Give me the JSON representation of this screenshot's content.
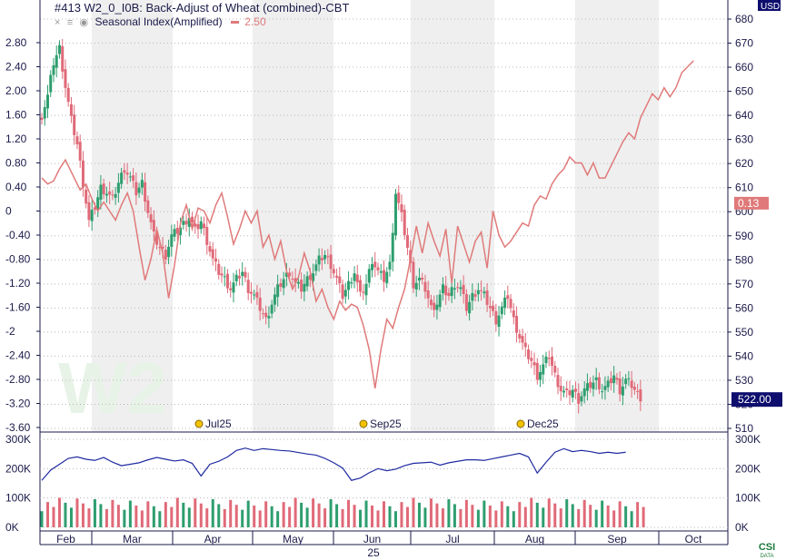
{
  "header": {
    "title": "#413 W2_0_I0B: Back-Adjust of Wheat (combined)-CBT",
    "icons": [
      "close-icon",
      "settings-icon",
      "eye-icon"
    ],
    "study_label": "Seasonal Index(Amplified)",
    "study_value": "2.50"
  },
  "watermark": "W2",
  "currency": "USD",
  "price_badge": "522.00",
  "index_badge": "0.13",
  "logo_text": "CSI DATA",
  "year_label": "25",
  "colors": {
    "up": "#2e9e6f",
    "down": "#e06a78",
    "seasonal": "#e07a7a",
    "volume_line": "#1f2aa0",
    "stripe": "#efefef",
    "axis": "#1a1a4a",
    "badge": "#0e0e6e"
  },
  "chart_data": [
    {
      "type": "line",
      "title": "#413 W2_0_I0B: Back-Adjust of Wheat (combined)-CBT",
      "subtitle": "Seasonal Index(Amplified) 2.50",
      "left_axis": {
        "ticks": [
          "2.80",
          "2.40",
          "2.00",
          "1.60",
          "1.20",
          "0.80",
          "0.40",
          "0",
          "-0.40",
          "-0.80",
          "-1.20",
          "-1.60",
          "-2",
          "-2.40",
          "-2.80",
          "-3.20",
          "-3.60"
        ],
        "range": [
          -3.6,
          3.2
        ]
      },
      "right_axis": {
        "unit": "USD",
        "ticks": [
          "680",
          "670",
          "660",
          "650",
          "640",
          "630",
          "620",
          "610",
          "600",
          "590",
          "580",
          "570",
          "560",
          "550",
          "540",
          "530",
          "520",
          "510"
        ],
        "range": [
          508,
          682
        ]
      },
      "x_axis": {
        "months": [
          "Feb",
          "Mar",
          "Apr",
          "May",
          "Jun",
          "Jul",
          "Aug",
          "Sep",
          "Oct"
        ],
        "year": "25"
      },
      "contract_markers": [
        "Jul25",
        "Sep25",
        "Dec25"
      ],
      "seasonal_index": {
        "name": "Seasonal Index(Amplified)",
        "last_value": 0.13,
        "points": [
          [
            0,
            0.55
          ],
          [
            2,
            0.45
          ],
          [
            4,
            0.5
          ],
          [
            6,
            0.7
          ],
          [
            8,
            0.85
          ],
          [
            9,
            0.75
          ],
          [
            11,
            0.55
          ],
          [
            13,
            0.35
          ],
          [
            15,
            0.45
          ],
          [
            17,
            0.2
          ],
          [
            19,
            0.0
          ],
          [
            21,
            0.15
          ],
          [
            23,
            0.0
          ],
          [
            25,
            -0.15
          ],
          [
            27,
            0.1
          ],
          [
            29,
            0.3
          ],
          [
            31,
            0.0
          ],
          [
            33,
            -0.6
          ],
          [
            35,
            -1.15
          ],
          [
            37,
            -0.8
          ],
          [
            39,
            -0.3
          ],
          [
            41,
            -0.7
          ],
          [
            43,
            -1.45
          ],
          [
            45,
            -0.9
          ],
          [
            47,
            -0.2
          ],
          [
            49,
            0.1
          ],
          [
            51,
            -0.3
          ],
          [
            53,
            0.05
          ],
          [
            55,
            0.0
          ],
          [
            57,
            -0.2
          ],
          [
            59,
            0.1
          ],
          [
            61,
            0.3
          ],
          [
            63,
            -0.1
          ],
          [
            65,
            -0.55
          ],
          [
            67,
            -0.3
          ],
          [
            69,
            0.0
          ],
          [
            71,
            -0.2
          ],
          [
            73,
            0.0
          ],
          [
            75,
            -0.6
          ],
          [
            77,
            -0.4
          ],
          [
            79,
            -0.8
          ],
          [
            81,
            -0.5
          ],
          [
            83,
            -1.0
          ],
          [
            85,
            -1.3
          ],
          [
            87,
            -1.1
          ],
          [
            89,
            -0.7
          ],
          [
            91,
            -1.0
          ],
          [
            93,
            -1.5
          ],
          [
            95,
            -1.3
          ],
          [
            97,
            -1.6
          ],
          [
            99,
            -1.8
          ],
          [
            101,
            -1.5
          ],
          [
            103,
            -1.65
          ],
          [
            105,
            -1.55
          ],
          [
            107,
            -1.6
          ],
          [
            109,
            -1.9
          ],
          [
            111,
            -2.3
          ],
          [
            113,
            -2.95
          ],
          [
            115,
            -2.3
          ],
          [
            117,
            -1.8
          ],
          [
            119,
            -1.95
          ],
          [
            121,
            -1.6
          ],
          [
            123,
            -1.3
          ],
          [
            125,
            -0.8
          ],
          [
            127,
            -0.25
          ],
          [
            129,
            -0.7
          ],
          [
            131,
            -0.2
          ],
          [
            133,
            -0.5
          ],
          [
            135,
            -0.75
          ],
          [
            137,
            -0.3
          ],
          [
            139,
            -1.2
          ],
          [
            141,
            -0.25
          ],
          [
            143,
            -0.55
          ],
          [
            145,
            -0.85
          ],
          [
            147,
            -0.5
          ],
          [
            149,
            -0.35
          ],
          [
            151,
            -0.95
          ],
          [
            153,
            0.0
          ],
          [
            155,
            -0.4
          ],
          [
            157,
            -0.6
          ],
          [
            159,
            -0.5
          ],
          [
            161,
            -0.35
          ],
          [
            163,
            -0.2
          ],
          [
            165,
            -0.25
          ],
          [
            167,
            0.1
          ],
          [
            169,
            0.25
          ],
          [
            171,
            0.2
          ],
          [
            173,
            0.45
          ],
          [
            175,
            0.6
          ],
          [
            177,
            0.7
          ],
          [
            179,
            0.9
          ],
          [
            181,
            0.8
          ],
          [
            183,
            0.8
          ],
          [
            185,
            0.6
          ],
          [
            187,
            0.8
          ],
          [
            189,
            0.55
          ],
          [
            191,
            0.55
          ],
          [
            193,
            0.75
          ],
          [
            195,
            0.95
          ],
          [
            197,
            1.15
          ],
          [
            199,
            1.3
          ],
          [
            201,
            1.2
          ],
          [
            203,
            1.55
          ],
          [
            205,
            1.75
          ],
          [
            207,
            1.95
          ],
          [
            209,
            1.85
          ],
          [
            211,
            2.05
          ],
          [
            213,
            1.9
          ],
          [
            215,
            2.05
          ],
          [
            217,
            2.3
          ],
          [
            219,
            2.4
          ],
          [
            221,
            2.5
          ]
        ]
      },
      "price": {
        "name": "Back-Adjust of Wheat (combined)-CBT",
        "unit": "USD",
        "last_value": 522.0,
        "high": 671,
        "low": 520,
        "anchors": [
          [
            0,
            640
          ],
          [
            2,
            648
          ],
          [
            4,
            662
          ],
          [
            6,
            668
          ],
          [
            8,
            652
          ],
          [
            10,
            638
          ],
          [
            12,
            628
          ],
          [
            14,
            612
          ],
          [
            16,
            596
          ],
          [
            18,
            602
          ],
          [
            20,
            610
          ],
          [
            22,
            608
          ],
          [
            24,
            605
          ],
          [
            26,
            612
          ],
          [
            28,
            618
          ],
          [
            30,
            614
          ],
          [
            32,
            608
          ],
          [
            34,
            612
          ],
          [
            36,
            600
          ],
          [
            38,
            590
          ],
          [
            40,
            585
          ],
          [
            42,
            582
          ],
          [
            44,
            590
          ],
          [
            46,
            592
          ],
          [
            48,
            595
          ],
          [
            50,
            598
          ],
          [
            52,
            592
          ],
          [
            54,
            596
          ],
          [
            56,
            588
          ],
          [
            58,
            580
          ],
          [
            60,
            575
          ],
          [
            62,
            572
          ],
          [
            64,
            568
          ],
          [
            66,
            572
          ],
          [
            68,
            575
          ],
          [
            70,
            568
          ],
          [
            72,
            565
          ],
          [
            74,
            560
          ],
          [
            76,
            555
          ],
          [
            78,
            562
          ],
          [
            80,
            568
          ],
          [
            82,
            572
          ],
          [
            84,
            575
          ],
          [
            86,
            570
          ],
          [
            88,
            568
          ],
          [
            90,
            572
          ],
          [
            92,
            575
          ],
          [
            94,
            580
          ],
          [
            96,
            582
          ],
          [
            98,
            578
          ],
          [
            100,
            572
          ],
          [
            102,
            565
          ],
          [
            104,
            570
          ],
          [
            106,
            575
          ],
          [
            108,
            565
          ],
          [
            110,
            570
          ],
          [
            112,
            580
          ],
          [
            114,
            575
          ],
          [
            116,
            572
          ],
          [
            118,
            578
          ],
          [
            120,
            608
          ],
          [
            122,
            598
          ],
          [
            124,
            585
          ],
          [
            126,
            570
          ],
          [
            128,
            572
          ],
          [
            130,
            568
          ],
          [
            132,
            560
          ],
          [
            134,
            562
          ],
          [
            136,
            568
          ],
          [
            138,
            565
          ],
          [
            140,
            570
          ],
          [
            142,
            568
          ],
          [
            144,
            560
          ],
          [
            146,
            565
          ],
          [
            148,
            568
          ],
          [
            150,
            565
          ],
          [
            152,
            560
          ],
          [
            154,
            555
          ],
          [
            156,
            560
          ],
          [
            158,
            565
          ],
          [
            160,
            555
          ],
          [
            162,
            548
          ],
          [
            164,
            542
          ],
          [
            166,
            538
          ],
          [
            168,
            532
          ],
          [
            170,
            536
          ],
          [
            172,
            540
          ],
          [
            174,
            532
          ],
          [
            176,
            526
          ],
          [
            178,
            524
          ],
          [
            180,
            526
          ],
          [
            182,
            522
          ],
          [
            184,
            526
          ],
          [
            186,
            528
          ],
          [
            188,
            530
          ],
          [
            190,
            526
          ],
          [
            192,
            528
          ],
          [
            194,
            532
          ],
          [
            196,
            526
          ],
          [
            198,
            530
          ],
          [
            200,
            528
          ],
          [
            202,
            524
          ],
          [
            204,
            522
          ]
        ]
      },
      "xlabel": "",
      "ylabel": ""
    },
    {
      "type": "line",
      "title": "",
      "series": [
        {
          "points": [
            [
              0,
              160
            ],
            [
              3,
              195
            ],
            [
              6,
              215
            ],
            [
              9,
              235
            ],
            [
              12,
              240
            ],
            [
              15,
              232
            ],
            [
              18,
              228
            ],
            [
              21,
              238
            ],
            [
              24,
              222
            ],
            [
              27,
              210
            ],
            [
              30,
              215
            ],
            [
              33,
              220
            ],
            [
              36,
              230
            ],
            [
              39,
              238
            ],
            [
              42,
              232
            ],
            [
              45,
              226
            ],
            [
              48,
              230
            ],
            [
              51,
              218
            ],
            [
              54,
              175
            ],
            [
              57,
              215
            ],
            [
              60,
              225
            ],
            [
              63,
              240
            ],
            [
              66,
              262
            ],
            [
              69,
              270
            ],
            [
              72,
              262
            ],
            [
              75,
              268
            ],
            [
              78,
              265
            ],
            [
              81,
              262
            ],
            [
              84,
              260
            ],
            [
              87,
              255
            ],
            [
              90,
              250
            ],
            [
              93,
              246
            ],
            [
              96,
              235
            ],
            [
              99,
              220
            ],
            [
              102,
              202
            ],
            [
              105,
              160
            ],
            [
              108,
              168
            ],
            [
              111,
              186
            ],
            [
              114,
              200
            ],
            [
              117,
              193
            ],
            [
              120,
              198
            ],
            [
              123,
              210
            ],
            [
              126,
              218
            ],
            [
              129,
              220
            ],
            [
              132,
              222
            ],
            [
              135,
              212
            ],
            [
              138,
              220
            ],
            [
              141,
              225
            ],
            [
              144,
              230
            ],
            [
              147,
              230
            ],
            [
              150,
              228
            ],
            [
              153,
              234
            ],
            [
              156,
              240
            ],
            [
              159,
              246
            ],
            [
              162,
              252
            ],
            [
              165,
              240
            ],
            [
              168,
              185
            ],
            [
              171,
              222
            ],
            [
              174,
              256
            ],
            [
              177,
              268
            ],
            [
              180,
              258
            ],
            [
              183,
              262
            ],
            [
              186,
              258
            ],
            [
              189,
              252
            ],
            [
              192,
              256
            ],
            [
              195,
              252
            ],
            [
              198,
              256
            ]
          ]
        }
      ],
      "yticks_left": [
        "300K",
        "200K",
        "100K",
        "0K"
      ],
      "yticks_right": [
        "300K",
        "200K",
        "100K",
        "0K"
      ],
      "ylim": [
        0,
        300000
      ]
    }
  ]
}
